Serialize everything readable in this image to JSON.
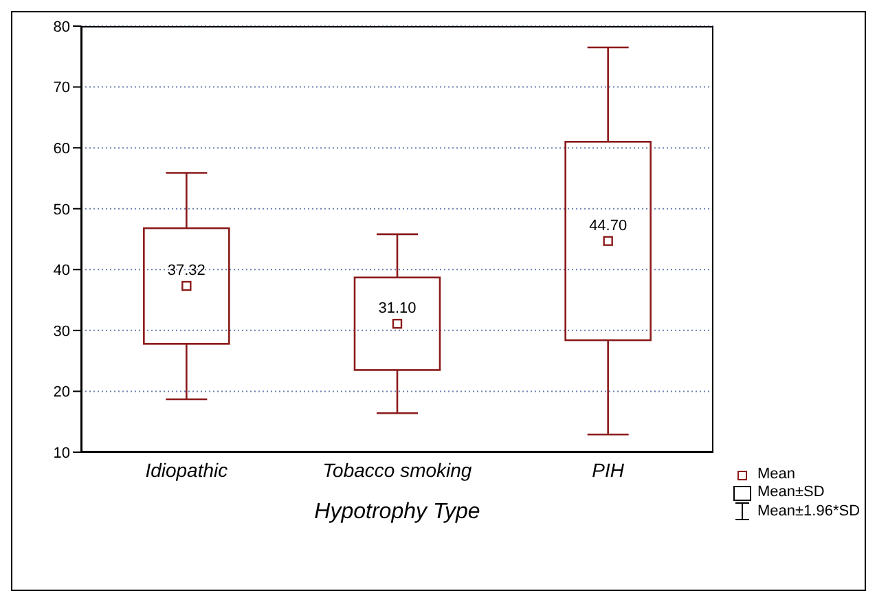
{
  "chart_data": {
    "type": "box",
    "xlabel": "Hypotrophy Type",
    "categories": [
      "Idiopathic",
      "Tobacco smoking",
      "PIH"
    ],
    "boxes": [
      {
        "low": 18.7,
        "q1": 27.8,
        "q3": 46.8,
        "high": 55.9,
        "mean": 37.32
      },
      {
        "low": 16.4,
        "q1": 23.5,
        "q3": 38.7,
        "high": 45.8,
        "mean": 31.1
      },
      {
        "low": 12.9,
        "q1": 28.4,
        "q3": 61.0,
        "high": 76.5,
        "mean": 44.7
      }
    ],
    "value_labels": [
      "37.32",
      "31.10",
      "44.70"
    ],
    "color": "#8b1a1a",
    "ylim": [
      10,
      80
    ],
    "yticks": [
      10,
      20,
      30,
      40,
      50,
      60,
      70,
      80
    ],
    "grid": "y",
    "annotations": [
      "Mean",
      "Mean±SD",
      "Mean±1.96*SD"
    ]
  }
}
